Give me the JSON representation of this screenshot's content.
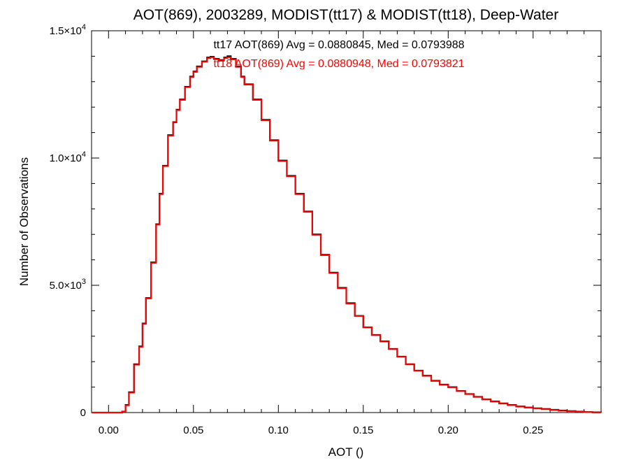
{
  "chart_data": {
    "type": "line",
    "title": "AOT(869), 2003289, MODIST(tt17) & MODIST(tt18), Deep-Water",
    "xlabel": "AOT ()",
    "ylabel": "Number of Observations",
    "xlim": [
      -0.01,
      0.29
    ],
    "ylim": [
      0,
      15000
    ],
    "grid": false,
    "step_plot": true,
    "x_ticks": [
      {
        "value": 0.0,
        "label": "0.00"
      },
      {
        "value": 0.05,
        "label": "0.05"
      },
      {
        "value": 0.1,
        "label": "0.10"
      },
      {
        "value": 0.15,
        "label": "0.15"
      },
      {
        "value": 0.2,
        "label": "0.20"
      },
      {
        "value": 0.25,
        "label": "0.25"
      }
    ],
    "y_ticks": [
      {
        "value": 0,
        "label": "0",
        "mantissa": "",
        "exponent": ""
      },
      {
        "value": 5000,
        "label": "",
        "mantissa": "5.0×10",
        "exponent": "3"
      },
      {
        "value": 10000,
        "label": "",
        "mantissa": "1.0×10",
        "exponent": "4"
      },
      {
        "value": 15000,
        "label": "",
        "mantissa": "1.5×10",
        "exponent": "4"
      }
    ],
    "annotations": [
      {
        "text": "tt17 AOT(869) Avg = 0.0880845, Med = 0.0793988",
        "color": "#000000"
      },
      {
        "text": "tt18 AOT(869) Avg = 0.0880948, Med = 0.0793821",
        "color": "#ff0000"
      }
    ],
    "x": [
      -0.01,
      0.0,
      0.005,
      0.008,
      0.01,
      0.012,
      0.015,
      0.018,
      0.02,
      0.022,
      0.025,
      0.028,
      0.03,
      0.032,
      0.035,
      0.038,
      0.04,
      0.042,
      0.045,
      0.048,
      0.05,
      0.052,
      0.055,
      0.058,
      0.06,
      0.062,
      0.065,
      0.068,
      0.07,
      0.072,
      0.075,
      0.078,
      0.08,
      0.085,
      0.09,
      0.095,
      0.1,
      0.105,
      0.11,
      0.115,
      0.12,
      0.125,
      0.13,
      0.135,
      0.14,
      0.145,
      0.15,
      0.155,
      0.16,
      0.165,
      0.17,
      0.175,
      0.18,
      0.185,
      0.19,
      0.195,
      0.2,
      0.205,
      0.21,
      0.215,
      0.22,
      0.225,
      0.23,
      0.235,
      0.24,
      0.245,
      0.25,
      0.255,
      0.26,
      0.265,
      0.27,
      0.275,
      0.28,
      0.285,
      0.29
    ],
    "series": [
      {
        "name": "tt17",
        "color": "#000000",
        "values": [
          0,
          0,
          0,
          40,
          300,
          800,
          1900,
          2600,
          3500,
          4500,
          5900,
          7400,
          8600,
          9700,
          10900,
          11400,
          11900,
          12300,
          12800,
          13200,
          13400,
          13600,
          13800,
          13950,
          13980,
          13900,
          13850,
          13950,
          14000,
          13900,
          13600,
          13200,
          12900,
          12300,
          11500,
          10700,
          9900,
          9300,
          8600,
          7900,
          7000,
          6200,
          5500,
          4900,
          4300,
          3800,
          3350,
          3050,
          2800,
          2500,
          2200,
          1900,
          1650,
          1450,
          1250,
          1100,
          1000,
          850,
          730,
          620,
          520,
          440,
          360,
          300,
          240,
          200,
          170,
          140,
          110,
          80,
          60,
          40,
          20,
          10,
          0
        ]
      },
      {
        "name": "tt18",
        "color": "#ff0000",
        "values": [
          0,
          0,
          0,
          30,
          280,
          780,
          1880,
          2580,
          3480,
          4480,
          5880,
          7380,
          8580,
          9680,
          10880,
          11420,
          11880,
          12280,
          12780,
          13180,
          13380,
          13580,
          13780,
          13920,
          13960,
          13880,
          13820,
          13920,
          13960,
          13870,
          13580,
          13180,
          12880,
          12280,
          11480,
          10680,
          9880,
          9280,
          8580,
          7880,
          6980,
          6180,
          5480,
          4880,
          4280,
          3790,
          3340,
          3040,
          2790,
          2490,
          2190,
          1890,
          1640,
          1440,
          1240,
          1090,
          990,
          840,
          720,
          610,
          510,
          430,
          350,
          290,
          230,
          190,
          160,
          130,
          100,
          70,
          50,
          30,
          15,
          5,
          0
        ]
      }
    ]
  }
}
